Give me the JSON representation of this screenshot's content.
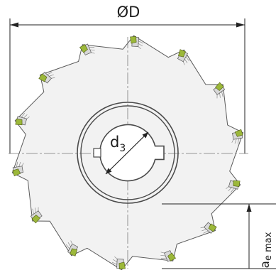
{
  "labels": {
    "diameter_symbol": "ØD",
    "bore_prefix": "d",
    "bore_sub": "3",
    "depth_prefix": "a",
    "depth_sub": "e max"
  },
  "cutter": {
    "teeth": 14,
    "body_color": "#f2f2f2",
    "outline_color": "#5a5a5a",
    "insert_color": "#9cb83a",
    "dim_line_color": "#222222"
  }
}
